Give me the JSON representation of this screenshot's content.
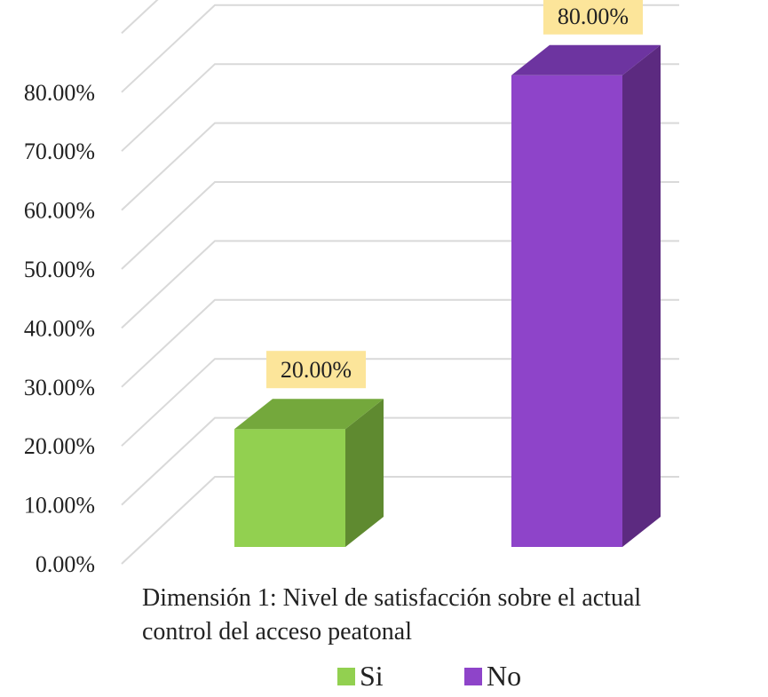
{
  "chart_data": {
    "type": "bar",
    "title": "",
    "xlabel": "",
    "ylabel": "",
    "ylim": [
      0,
      90
    ],
    "tick_step": 10,
    "y_tick_labels": [
      "0.00%",
      "10.00%",
      "20.00%",
      "30.00%",
      "40.00%",
      "50.00%",
      "60.00%",
      "70.00%",
      "80.00%"
    ],
    "categories": [
      "Dimensión 1: Nivel de satisfacción sobre el actual control del acceso peatonal"
    ],
    "category_lines": [
      "Dimensión 1: Nivel de satisfacción sobre el actual",
      "control del acceso peatonal"
    ],
    "series": [
      {
        "name": "Si",
        "values": [
          20
        ],
        "label": "20.00%",
        "color": "#92d050",
        "side_color": "#5f8a30",
        "top_color": "#74a83c"
      },
      {
        "name": "No",
        "values": [
          80
        ],
        "label": "80.00%",
        "color": "#8e44c9",
        "side_color": "#5c2a80",
        "top_color": "#6d34a0"
      }
    ],
    "data_label_fill": "#fce59a",
    "gridlines": true,
    "gridline_color": "#d9d9d9",
    "legend_position": "bottom"
  }
}
